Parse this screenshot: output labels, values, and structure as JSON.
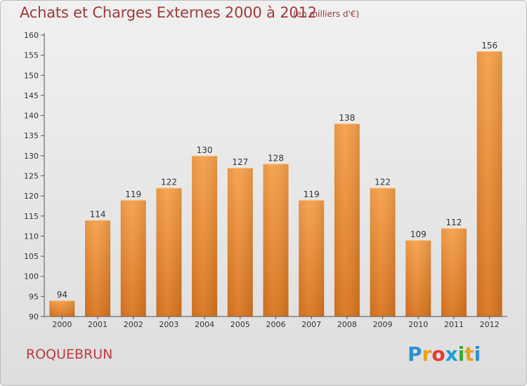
{
  "title": "Achats et Charges Externes 2000 à 2012",
  "subtitle": "(en milliers d'€)",
  "town": "ROQUEBRUN",
  "logo": {
    "letters": [
      "P",
      "r",
      "o",
      "x",
      "i",
      "t",
      "i"
    ],
    "colors": [
      "#2e8fd0",
      "#e9a11a",
      "#e23b2e",
      "#1e9fd8",
      "#39a935",
      "#e9a11a",
      "#2e8fd0"
    ]
  },
  "colors": {
    "bar_light": "#f6a04a",
    "bar_dark": "#d9751f",
    "axis": "#555555",
    "title": "#a13a3a"
  },
  "chart_data": {
    "type": "bar",
    "title": "Achats et Charges Externes 2000 à 2012",
    "subtitle": "(en milliers d'€)",
    "categories": [
      "2000",
      "2001",
      "2002",
      "2003",
      "2004",
      "2005",
      "2006",
      "2007",
      "2008",
      "2009",
      "2010",
      "2011",
      "2012"
    ],
    "values": [
      94,
      114,
      119,
      122,
      130,
      127,
      128,
      119,
      138,
      122,
      109,
      112,
      156
    ],
    "ylim": [
      90,
      160
    ],
    "yticks": [
      90,
      95,
      100,
      105,
      110,
      115,
      120,
      125,
      130,
      135,
      140,
      145,
      150,
      155,
      160
    ],
    "grid": false,
    "data_labels": true
  }
}
